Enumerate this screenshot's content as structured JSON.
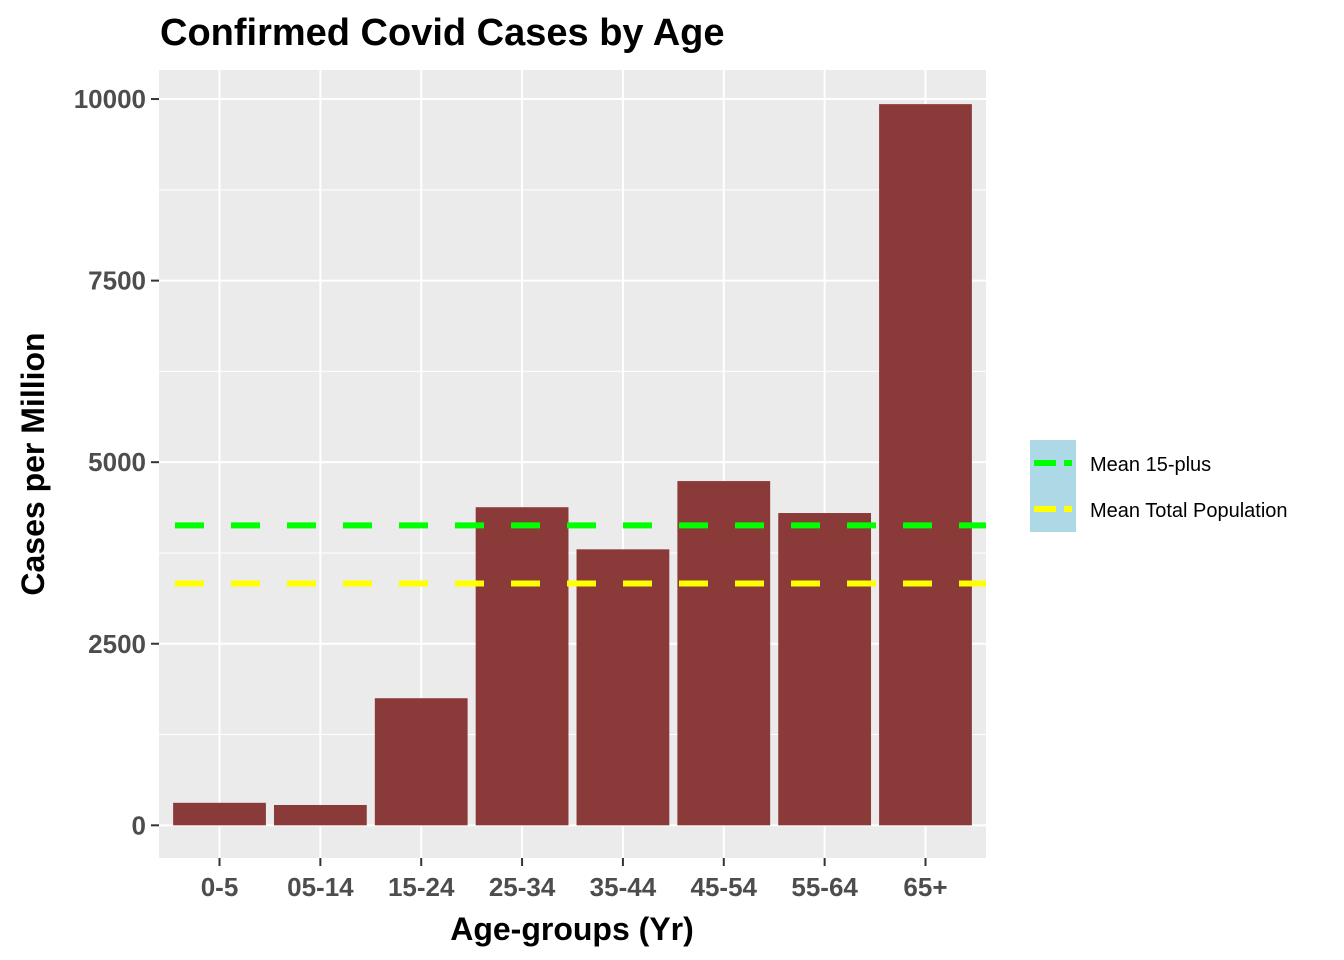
{
  "chart_data": {
    "type": "bar",
    "title": "Confirmed Covid Cases by Age",
    "xlabel": "Age-groups (Yr)",
    "ylabel": "Cases per Million",
    "categories": [
      "0-5",
      "05-14",
      "15-24",
      "25-34",
      "35-44",
      "45-54",
      "55-64",
      "65+"
    ],
    "values": [
      310,
      280,
      1750,
      4380,
      3800,
      4740,
      4300,
      9930
    ],
    "ylim": [
      -450,
      10400
    ],
    "yticks": [
      0,
      2500,
      5000,
      7500,
      10000
    ],
    "ytick_labels": [
      "0",
      "2500",
      "5000",
      "7500",
      "10000"
    ],
    "bar_color": "#8B3A3A",
    "panel_background": "#EBEBEB",
    "grid": true,
    "reference_lines": [
      {
        "name": "Mean 15-plus",
        "value": 4130,
        "color": "#00FF00",
        "style": "dashed"
      },
      {
        "name": "Mean Total Population",
        "value": 3330,
        "color": "#FFFF00",
        "style": "dashed"
      }
    ],
    "legend": {
      "position": "right",
      "background": "#ADD8E6",
      "entries": [
        "Mean 15-plus",
        "Mean Total Population"
      ]
    }
  }
}
